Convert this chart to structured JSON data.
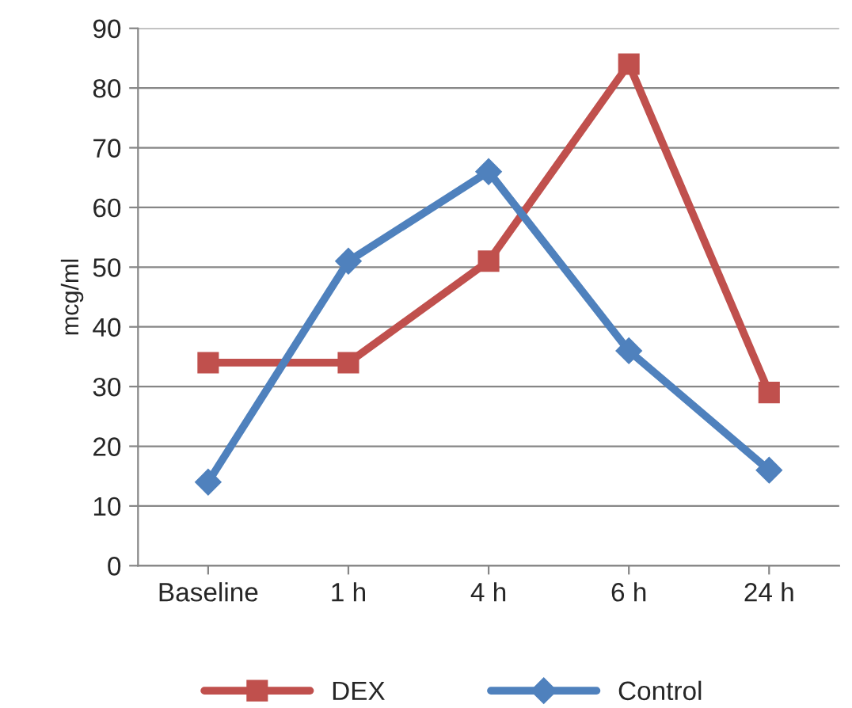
{
  "chart_data": {
    "type": "line",
    "ylabel": "mcg/ml",
    "categories": [
      "Baseline",
      "1 h",
      "4 h",
      "6 h",
      "24 h"
    ],
    "series": [
      {
        "name": "DEX",
        "color": "#c0504d",
        "marker": "square",
        "values": [
          34,
          34,
          51,
          84,
          29
        ]
      },
      {
        "name": "Control",
        "color": "#4f81bd",
        "marker": "diamond",
        "values": [
          14,
          51,
          66,
          36,
          16
        ]
      }
    ],
    "ylim": [
      0,
      90
    ],
    "yticks": [
      0,
      10,
      20,
      30,
      40,
      50,
      60,
      70,
      80,
      90
    ],
    "grid": "y",
    "legend": "bottom",
    "line_style": "solid"
  }
}
